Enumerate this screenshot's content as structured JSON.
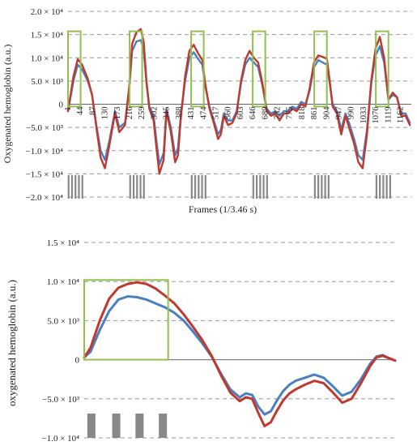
{
  "colors": {
    "series_red": "#c0392f",
    "series_blue": "#4a7fc1",
    "box_green": "#92c050",
    "stim_gray": "#888888",
    "grid": "#999999"
  },
  "chart_data": [
    {
      "type": "line",
      "ylabel": "Oxygenated hemoglobin (a.u.)",
      "xlabel": "Frames (1/3.46 s)",
      "ylim": [
        -20000,
        20000
      ],
      "ytick_labels": [
        "2.0 × 10⁴",
        "1.5 × 10⁴",
        "1.0 × 10⁴",
        "5.0 × 10³",
        "0",
        "−5.0 × 10³",
        "−1.0 × 10⁴",
        "−1.5 × 10⁴",
        "−2.0 × 10⁴"
      ],
      "ytick_values": [
        20000,
        15000,
        10000,
        5000,
        0,
        -5000,
        -10000,
        -15000,
        -20000
      ],
      "xlim": [
        1,
        1200
      ],
      "x_ticks": [
        1,
        44,
        87,
        130,
        173,
        216,
        259,
        302,
        345,
        388,
        431,
        474,
        517,
        560,
        603,
        646,
        689,
        732,
        775,
        818,
        861,
        904,
        947,
        990,
        1033,
        1076,
        1119,
        1162
      ],
      "grid": true,
      "series": [
        {
          "color": "red",
          "x": [
            1,
            20,
            35,
            50,
            70,
            85,
            100,
            115,
            130,
            145,
            165,
            180,
            200,
            215,
            225,
            240,
            255,
            265,
            275,
            285,
            300,
            310,
            320,
            335,
            345,
            360,
            375,
            385,
            395,
            410,
            425,
            440,
            455,
            470,
            480,
            495,
            510,
            525,
            535,
            545,
            560,
            575,
            590,
            605,
            620,
            635,
            650,
            665,
            680,
            695,
            710,
            725,
            740,
            755,
            770,
            785,
            800,
            815,
            830,
            845,
            860,
            875,
            890,
            905,
            915,
            925,
            940,
            955,
            970,
            985,
            1000,
            1015,
            1030,
            1045,
            1060,
            1075,
            1090,
            1105,
            1120,
            1135,
            1150,
            1165,
            1180,
            1195
          ],
          "y": [
            -1500,
            6000,
            9700,
            8500,
            5500,
            2000,
            -5000,
            -11500,
            -13800,
            -9000,
            -2000,
            -6000,
            -4500,
            4000,
            13000,
            15500,
            16200,
            13500,
            5000,
            -1000,
            -3500,
            -9500,
            -15000,
            -12000,
            -1500,
            -6000,
            -12500,
            -11000,
            -3000,
            6000,
            11500,
            12800,
            11000,
            9500,
            4500,
            -1000,
            -4000,
            -7500,
            -6500,
            -2500,
            -4500,
            -4000,
            -2000,
            5000,
            9500,
            11500,
            10000,
            9000,
            4500,
            -1500,
            -2500,
            -2000,
            -3500,
            -2000,
            -2000,
            -1000,
            -1500,
            0,
            -500,
            3500,
            9000,
            10500,
            10200,
            9800,
            5000,
            -500,
            -2000,
            -6500,
            -2500,
            -5500,
            -8500,
            -12500,
            -13800,
            -6500,
            5000,
            12000,
            14500,
            10000,
            1000,
            2500,
            1500,
            -2500,
            -2500,
            -4500
          ]
        },
        {
          "color": "blue",
          "x": [
            1,
            20,
            35,
            50,
            70,
            85,
            100,
            115,
            130,
            145,
            165,
            180,
            200,
            215,
            225,
            240,
            255,
            265,
            275,
            285,
            300,
            310,
            320,
            335,
            345,
            360,
            375,
            385,
            395,
            410,
            425,
            440,
            455,
            470,
            480,
            495,
            510,
            525,
            535,
            545,
            560,
            575,
            590,
            605,
            620,
            635,
            650,
            665,
            680,
            695,
            710,
            725,
            740,
            755,
            770,
            785,
            800,
            815,
            830,
            845,
            860,
            875,
            890,
            905,
            915,
            925,
            940,
            955,
            970,
            985,
            1000,
            1015,
            1030,
            1045,
            1060,
            1075,
            1090,
            1105,
            1120,
            1135,
            1150,
            1165,
            1180,
            1195
          ],
          "y": [
            -1500,
            5000,
            8500,
            7500,
            5000,
            2000,
            -4500,
            -10000,
            -12000,
            -8000,
            -1500,
            -5000,
            -4000,
            3500,
            11500,
            13500,
            13800,
            12000,
            4500,
            -500,
            -2500,
            -8000,
            -13000,
            -10500,
            -1000,
            -5000,
            -11000,
            -9500,
            -2500,
            5000,
            10000,
            11200,
            9800,
            8500,
            4000,
            -500,
            -3500,
            -6500,
            -5500,
            -2000,
            -3500,
            -3500,
            -1500,
            4500,
            8500,
            10000,
            9000,
            8000,
            4000,
            -1000,
            -2000,
            -1500,
            -2500,
            -1500,
            -1500,
            -500,
            -1000,
            500,
            0,
            3000,
            8000,
            9500,
            9000,
            8500,
            4500,
            0,
            -1500,
            -5500,
            -2000,
            -4500,
            -7500,
            -11000,
            -12000,
            -5500,
            4500,
            10500,
            12500,
            9000,
            1000,
            2000,
            1500,
            -2000,
            -2000,
            -4000
          ]
        }
      ],
      "highlight_boxes": [
        {
          "x": [
            1,
            45
          ],
          "y": [
            -500,
            15700
          ]
        },
        {
          "x": [
            216,
            260
          ],
          "y": [
            -500,
            15700
          ]
        },
        {
          "x": [
            431,
            475
          ],
          "y": [
            -500,
            15700
          ]
        },
        {
          "x": [
            646,
            690
          ],
          "y": [
            -500,
            15700
          ]
        },
        {
          "x": [
            861,
            905
          ],
          "y": [
            -500,
            15700
          ]
        },
        {
          "x": [
            1076,
            1120
          ],
          "y": [
            -500,
            15700
          ]
        }
      ],
      "stimulus_blocks": [
        {
          "start": 0,
          "end": 60,
          "count": 5
        },
        {
          "start": 215,
          "end": 275,
          "count": 5
        },
        {
          "start": 430,
          "end": 490,
          "count": 5
        },
        {
          "start": 645,
          "end": 705,
          "count": 5
        },
        {
          "start": 860,
          "end": 920,
          "count": 5
        },
        {
          "start": 1075,
          "end": 1135,
          "count": 5
        }
      ]
    },
    {
      "type": "line",
      "ylabel": "oxygenated  hemoglobin  (a.u.)",
      "ylim": [
        -10000,
        15000
      ],
      "ytick_labels": [
        "1.5 × 10⁴",
        "1.0 × 10⁴",
        "5.0 × 10³",
        "0",
        "−5.0 × 10³",
        "−1.0 × 10⁴"
      ],
      "ytick_values": [
        15000,
        10000,
        5000,
        0,
        -5000,
        -10000
      ],
      "xlim": [
        0,
        100
      ],
      "grid": true,
      "series": [
        {
          "color": "red",
          "x": [
            0,
            2,
            5,
            8,
            11,
            14,
            17,
            20,
            23,
            26,
            29,
            32,
            35,
            38,
            41,
            44,
            47,
            50,
            52,
            54,
            56,
            58,
            60,
            62,
            64,
            66,
            68,
            71,
            74,
            77,
            80,
            83,
            86,
            89,
            92,
            94,
            96,
            98,
            100
          ],
          "y": [
            300,
            1500,
            5000,
            7800,
            9200,
            9700,
            9900,
            9700,
            9100,
            8200,
            7200,
            5800,
            4200,
            2500,
            500,
            -2000,
            -4200,
            -5300,
            -4800,
            -5000,
            -6800,
            -8500,
            -8000,
            -6500,
            -5200,
            -4300,
            -3800,
            -3200,
            -2700,
            -3000,
            -4200,
            -5500,
            -5000,
            -3000,
            -800,
            300,
            500,
            200,
            -100
          ]
        },
        {
          "color": "blue",
          "x": [
            0,
            2,
            5,
            8,
            11,
            14,
            17,
            20,
            23,
            26,
            29,
            32,
            35,
            38,
            41,
            44,
            47,
            50,
            52,
            54,
            56,
            58,
            60,
            62,
            64,
            66,
            68,
            71,
            74,
            77,
            80,
            83,
            86,
            89,
            92,
            94,
            96,
            98,
            100
          ],
          "y": [
            300,
            1000,
            3800,
            6200,
            7700,
            8100,
            8000,
            7700,
            7200,
            6700,
            6000,
            5000,
            3600,
            2100,
            400,
            -1800,
            -3800,
            -4800,
            -4300,
            -4500,
            -6000,
            -7000,
            -6600,
            -5200,
            -4000,
            -3200,
            -2700,
            -2300,
            -1900,
            -2300,
            -3400,
            -4600,
            -4100,
            -2500,
            -500,
            400,
            600,
            200,
            -100
          ]
        }
      ],
      "highlight_boxes": [
        {
          "x": [
            0,
            27
          ],
          "y": [
            0,
            10200
          ]
        }
      ],
      "stimulus_bars_x": [
        1,
        9,
        16.5,
        24
      ]
    }
  ]
}
